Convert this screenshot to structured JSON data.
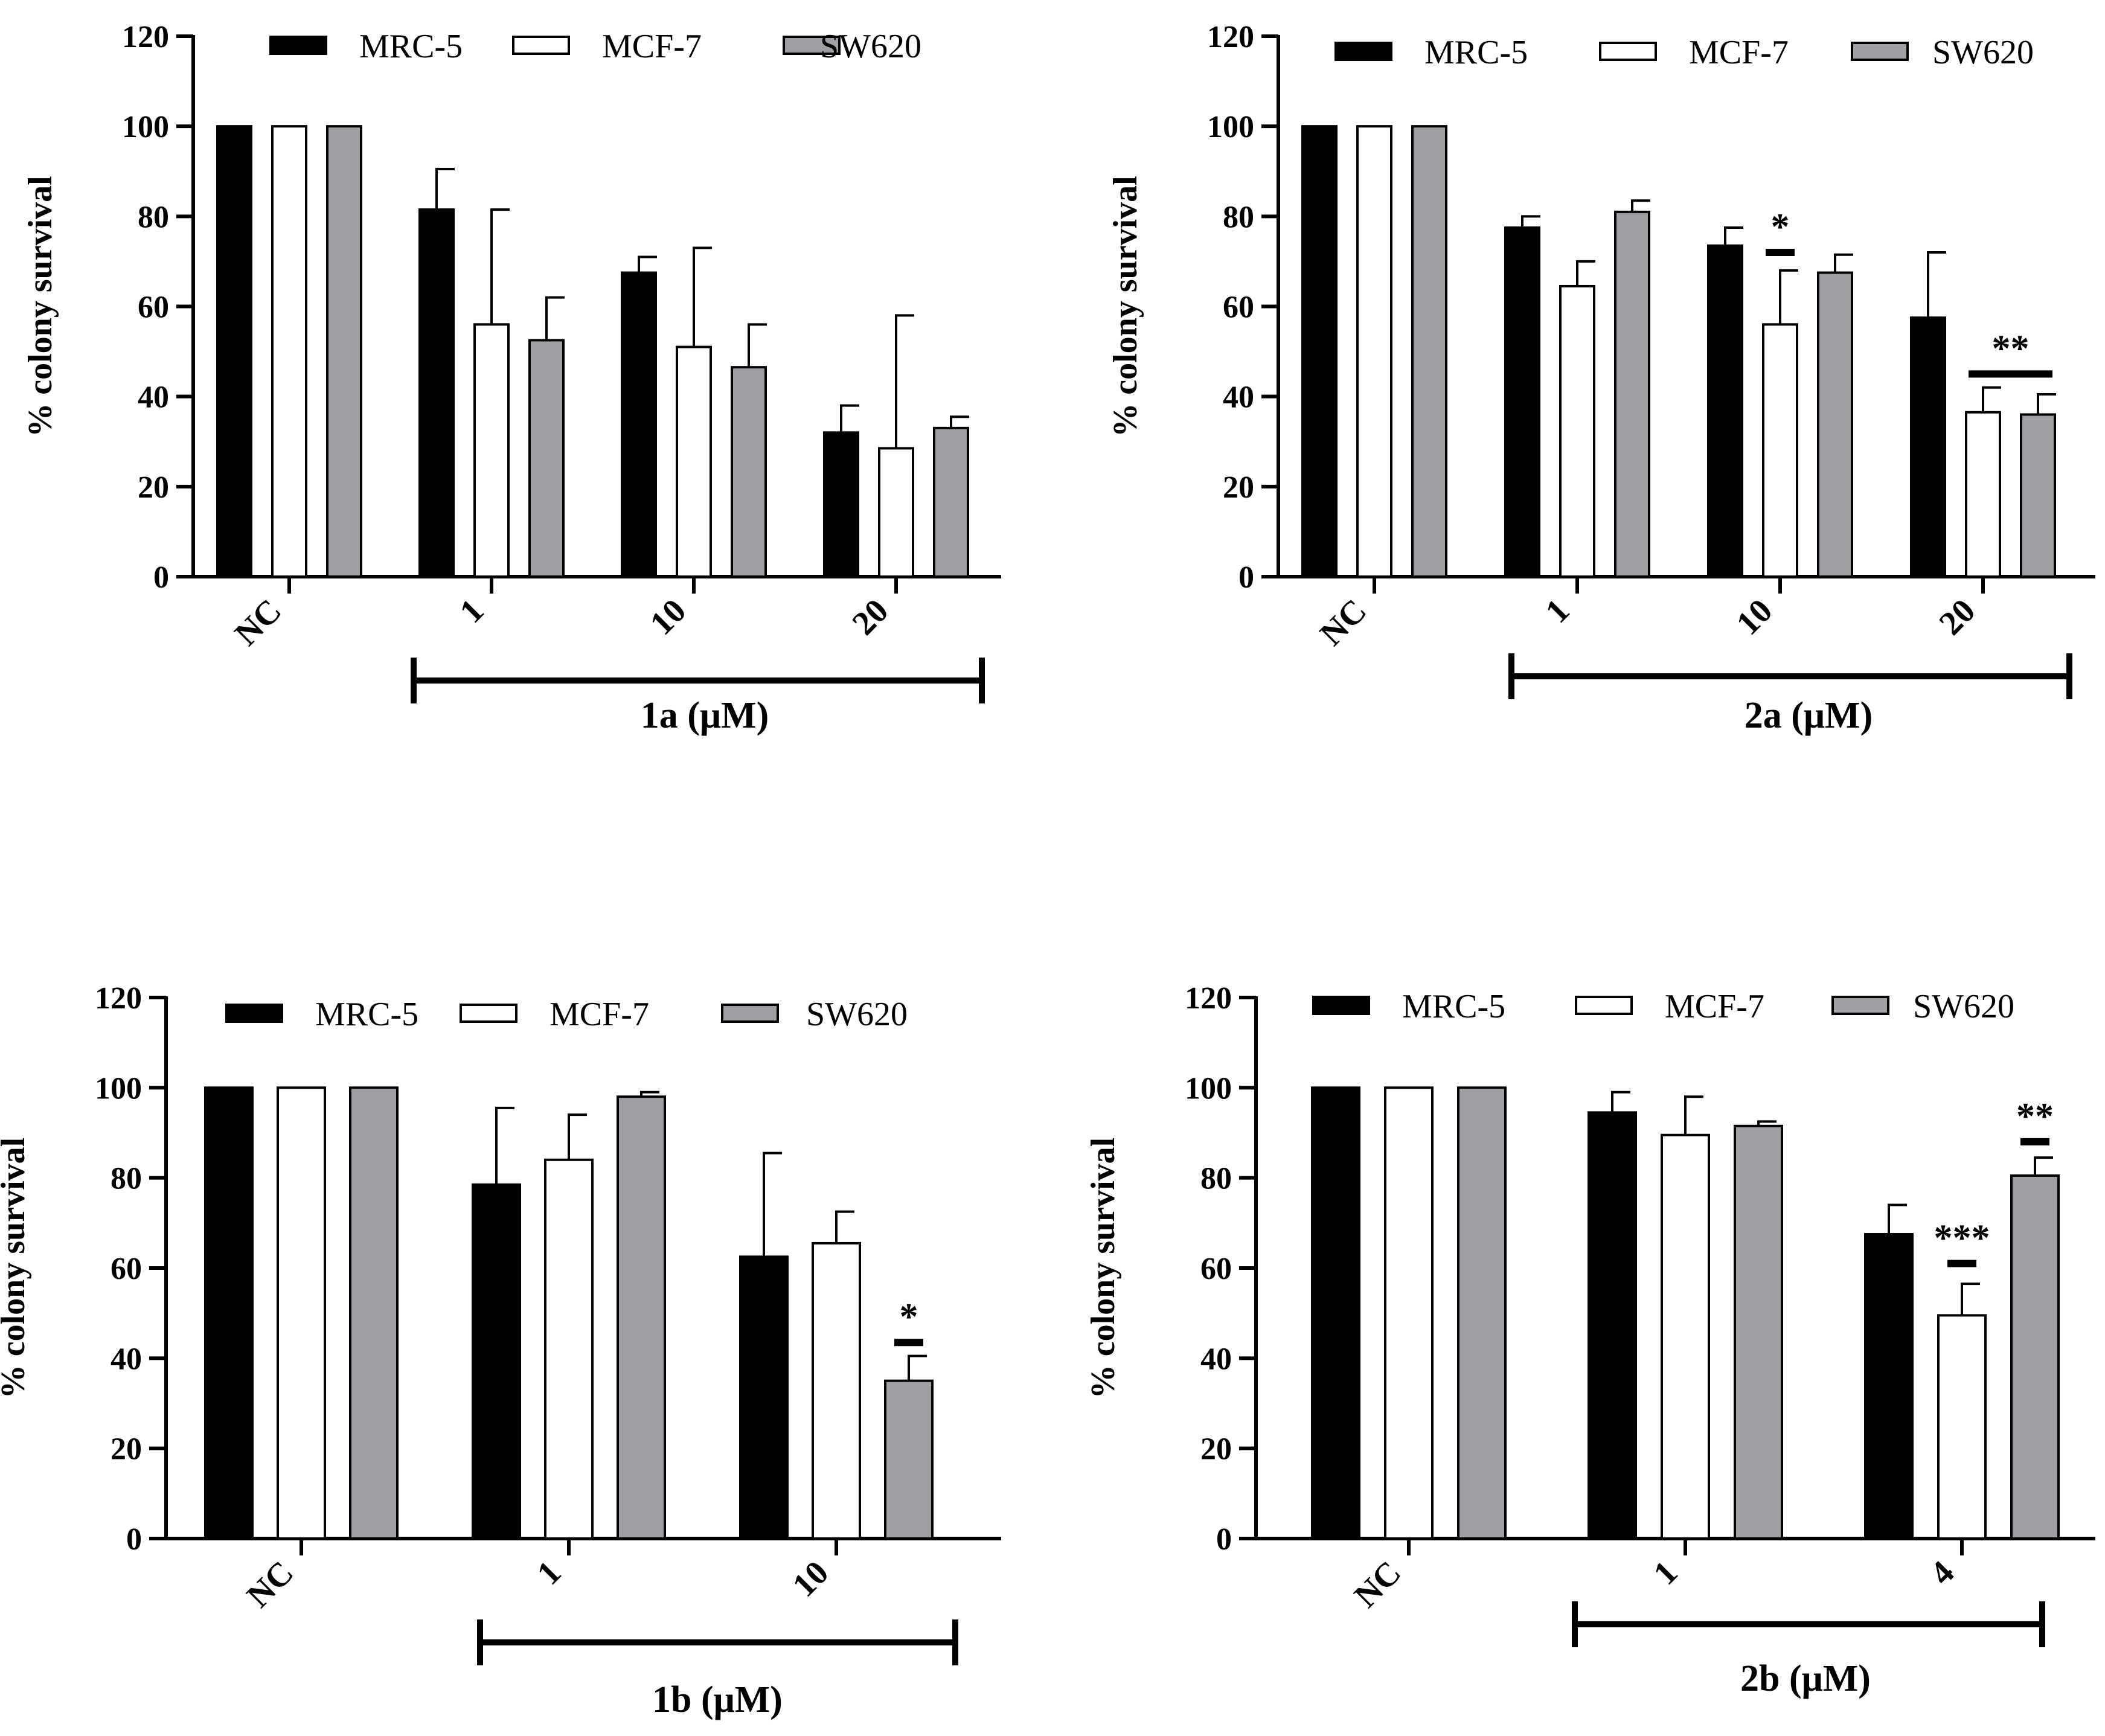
{
  "colors": {
    "MRC-5": "#000000",
    "MCF-7": "#ffffff",
    "SW620": "#a0a0a4"
  },
  "chart_data": [
    {
      "type": "bar",
      "ylabel": "% colony survival",
      "ylim": [
        0,
        120
      ],
      "yticks": [
        0,
        20,
        40,
        60,
        80,
        100,
        120
      ],
      "categories": [
        "NC",
        "1",
        "10",
        "20"
      ],
      "series": [
        {
          "name": "MRC-5",
          "values": [
            100,
            81.5,
            67.5,
            32
          ],
          "errors": [
            0,
            9,
            3.5,
            6
          ]
        },
        {
          "name": "MCF-7",
          "values": [
            100,
            56,
            51,
            28.5
          ],
          "errors": [
            0,
            25.5,
            22,
            29.5
          ]
        },
        {
          "name": "SW620",
          "values": [
            100,
            52.5,
            46.5,
            33
          ],
          "errors": [
            0,
            9.5,
            9.5,
            2.5
          ]
        }
      ],
      "dose_label": "1a (μM)",
      "significance": []
    },
    {
      "type": "bar",
      "ylabel": "% colony survival",
      "ylim": [
        0,
        120
      ],
      "yticks": [
        0,
        20,
        40,
        60,
        80,
        100,
        120
      ],
      "categories": [
        "NC",
        "1",
        "10",
        "20"
      ],
      "series": [
        {
          "name": "MRC-5",
          "values": [
            100,
            77.5,
            73.5,
            57.5
          ],
          "errors": [
            0,
            2.5,
            4,
            14.5
          ]
        },
        {
          "name": "MCF-7",
          "values": [
            100,
            64.5,
            56,
            36.5
          ],
          "errors": [
            0,
            5.5,
            12,
            5.5
          ]
        },
        {
          "name": "SW620",
          "values": [
            100,
            81,
            67.5,
            36
          ],
          "errors": [
            0,
            2.5,
            4,
            4.5
          ]
        }
      ],
      "dose_label": "2a (μM)",
      "significance": [
        {
          "label": "*",
          "category": 2,
          "series_from": 1,
          "series_to": 1,
          "y": 72
        },
        {
          "label": "**",
          "category": 3,
          "series_from": 1,
          "series_to": 2,
          "y": 45
        }
      ]
    },
    {
      "type": "bar",
      "ylabel": "% colony survival",
      "ylim": [
        0,
        120
      ],
      "yticks": [
        0,
        20,
        40,
        60,
        80,
        100,
        120
      ],
      "categories": [
        "NC",
        "1",
        "10"
      ],
      "series": [
        {
          "name": "MRC-5",
          "values": [
            100,
            78.5,
            62.5
          ],
          "errors": [
            0,
            17,
            23
          ]
        },
        {
          "name": "MCF-7",
          "values": [
            100,
            84,
            65.5
          ],
          "errors": [
            0,
            10,
            7
          ]
        },
        {
          "name": "SW620",
          "values": [
            100,
            98,
            35
          ],
          "errors": [
            0,
            1,
            5.5
          ]
        }
      ],
      "dose_label": "1b (μM)",
      "significance": [
        {
          "label": "*",
          "category": 2,
          "series_from": 2,
          "series_to": 2,
          "y": 43.5
        }
      ]
    },
    {
      "type": "bar",
      "ylabel": "% colony survival",
      "ylim": [
        0,
        120
      ],
      "yticks": [
        0,
        20,
        40,
        60,
        80,
        100,
        120
      ],
      "categories": [
        "NC",
        "1",
        "4"
      ],
      "series": [
        {
          "name": "MRC-5",
          "values": [
            100,
            94.5,
            67.5
          ],
          "errors": [
            0,
            4.5,
            6.5
          ]
        },
        {
          "name": "MCF-7",
          "values": [
            100,
            89.5,
            49.5
          ],
          "errors": [
            0,
            8.5,
            7
          ]
        },
        {
          "name": "SW620",
          "values": [
            100,
            91.5,
            80.5
          ],
          "errors": [
            0,
            1,
            4
          ]
        }
      ],
      "dose_label": "2b (μM)",
      "significance": [
        {
          "label": "***",
          "category": 2,
          "series_from": 1,
          "series_to": 1,
          "y": 61
        },
        {
          "label": "**",
          "category": 2,
          "series_from": 2,
          "series_to": 2,
          "y": 88
        }
      ]
    }
  ]
}
